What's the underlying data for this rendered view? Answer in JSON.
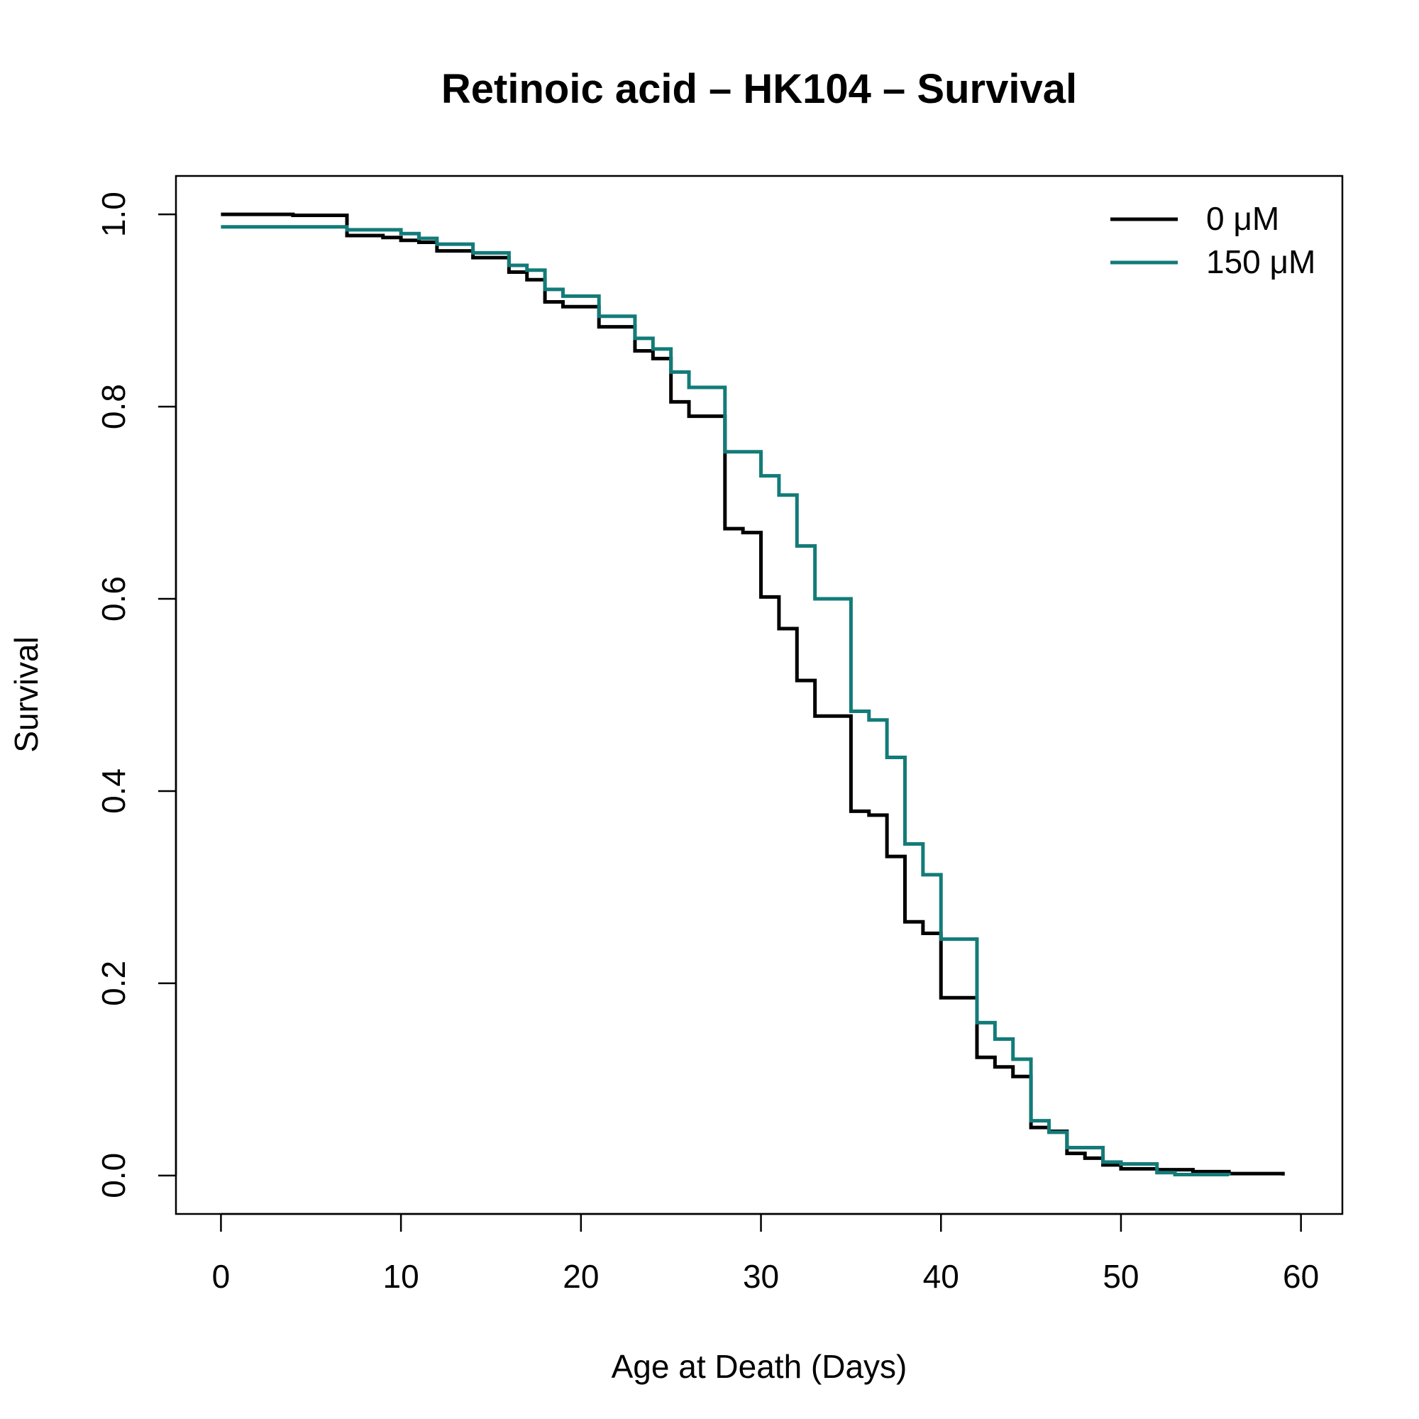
{
  "chart_data": {
    "type": "line",
    "step": true,
    "title": "Retinoic acid – HK104 – Survival",
    "xlabel": "Age at Death (Days)",
    "ylabel": "Survival",
    "xlim": [
      -2.5,
      62.3
    ],
    "ylim": [
      -0.04,
      1.04
    ],
    "x_ticks": [
      0,
      10,
      20,
      30,
      40,
      50,
      60
    ],
    "x_tick_labels": [
      "0",
      "10",
      "20",
      "30",
      "40",
      "50",
      "60"
    ],
    "y_ticks": [
      0.0,
      0.2,
      0.4,
      0.6,
      0.8,
      1.0
    ],
    "y_tick_labels": [
      "0.0",
      "0.2",
      "0.4",
      "0.6",
      "0.8",
      "1.0"
    ],
    "grid": false,
    "legend_position": "top-right",
    "series": [
      {
        "name": "0 μM",
        "color": "#000000",
        "x": [
          0,
          4,
          7,
          9,
          10,
          11,
          12,
          14,
          16,
          17,
          18,
          19,
          21,
          23,
          24,
          25,
          26,
          28,
          29,
          30,
          31,
          32,
          33,
          35,
          36,
          37,
          38,
          39,
          40,
          42,
          43,
          44,
          45,
          46,
          47,
          48,
          49,
          50,
          52,
          54,
          56,
          59
        ],
        "y": [
          1.0,
          0.999,
          0.978,
          0.976,
          0.973,
          0.971,
          0.962,
          0.955,
          0.94,
          0.932,
          0.909,
          0.904,
          0.883,
          0.858,
          0.85,
          0.805,
          0.79,
          0.673,
          0.669,
          0.602,
          0.569,
          0.515,
          0.478,
          0.379,
          0.375,
          0.332,
          0.264,
          0.252,
          0.185,
          0.123,
          0.113,
          0.103,
          0.05,
          0.046,
          0.023,
          0.018,
          0.011,
          0.007,
          0.006,
          0.004,
          0.002,
          0.0
        ]
      },
      {
        "name": "150 μM",
        "color": "#137b78",
        "x": [
          0,
          7,
          10,
          11,
          12,
          14,
          16,
          17,
          18,
          19,
          21,
          23,
          24,
          25,
          26,
          28,
          30,
          31,
          32,
          33,
          35,
          36,
          37,
          38,
          39,
          40,
          42,
          43,
          44,
          45,
          46,
          47,
          49,
          50,
          52,
          53,
          56
        ],
        "y": [
          0.987,
          0.984,
          0.98,
          0.975,
          0.969,
          0.96,
          0.947,
          0.942,
          0.922,
          0.915,
          0.894,
          0.871,
          0.86,
          0.836,
          0.82,
          0.753,
          0.728,
          0.708,
          0.655,
          0.6,
          0.483,
          0.474,
          0.435,
          0.345,
          0.313,
          0.246,
          0.159,
          0.142,
          0.121,
          0.057,
          0.045,
          0.029,
          0.014,
          0.012,
          0.003,
          0.001,
          0.0
        ]
      }
    ]
  }
}
